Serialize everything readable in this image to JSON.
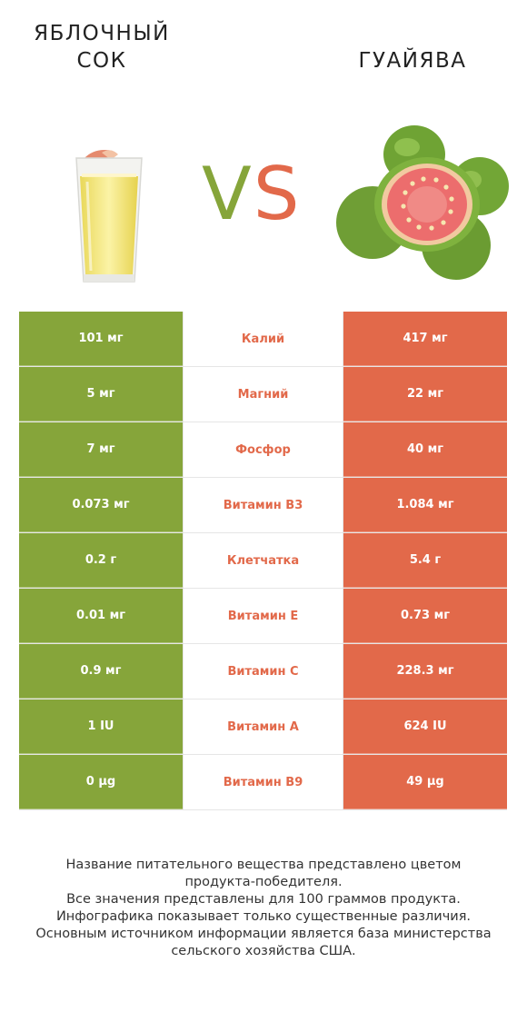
{
  "header": {
    "left_title": "ЯБЛОЧНЫЙ\nСОК",
    "right_title": "ГУАЙЯВА",
    "vs_v": "V",
    "vs_s": "S"
  },
  "colors": {
    "left_winner": "#86a53a",
    "right_winner": "#e2694a"
  },
  "icons": {
    "left": "apple-juice-glass-image",
    "right": "guava-fruit-image"
  },
  "rows": [
    {
      "left": "101 мг",
      "nutrient": "Калий",
      "right": "417 мг"
    },
    {
      "left": "5 мг",
      "nutrient": "Магний",
      "right": "22 мг"
    },
    {
      "left": "7 мг",
      "nutrient": "Фосфор",
      "right": "40 мг"
    },
    {
      "left": "0.073 мг",
      "nutrient": "Витамин B3",
      "right": "1.084 мг"
    },
    {
      "left": "0.2 г",
      "nutrient": "Клетчатка",
      "right": "5.4 г"
    },
    {
      "left": "0.01 мг",
      "nutrient": "Витамин E",
      "right": "0.73 мг"
    },
    {
      "left": "0.9 мг",
      "nutrient": "Витамин C",
      "right": "228.3 мг"
    },
    {
      "left": "1 IU",
      "nutrient": "Витамин A",
      "right": "624 IU"
    },
    {
      "left": "0 µg",
      "nutrient": "Витамин B9",
      "right": "49 µg"
    }
  ],
  "footer": {
    "line1": "Название питательного вещества представлено цветом",
    "line2": "продукта-победителя.",
    "line3": "Все значения представлены для 100 граммов продукта.",
    "line4": "Инфографика показывает только существенные различия.",
    "line5": "Основным источником информации является база министерства",
    "line6": "сельского хозяйства США."
  }
}
